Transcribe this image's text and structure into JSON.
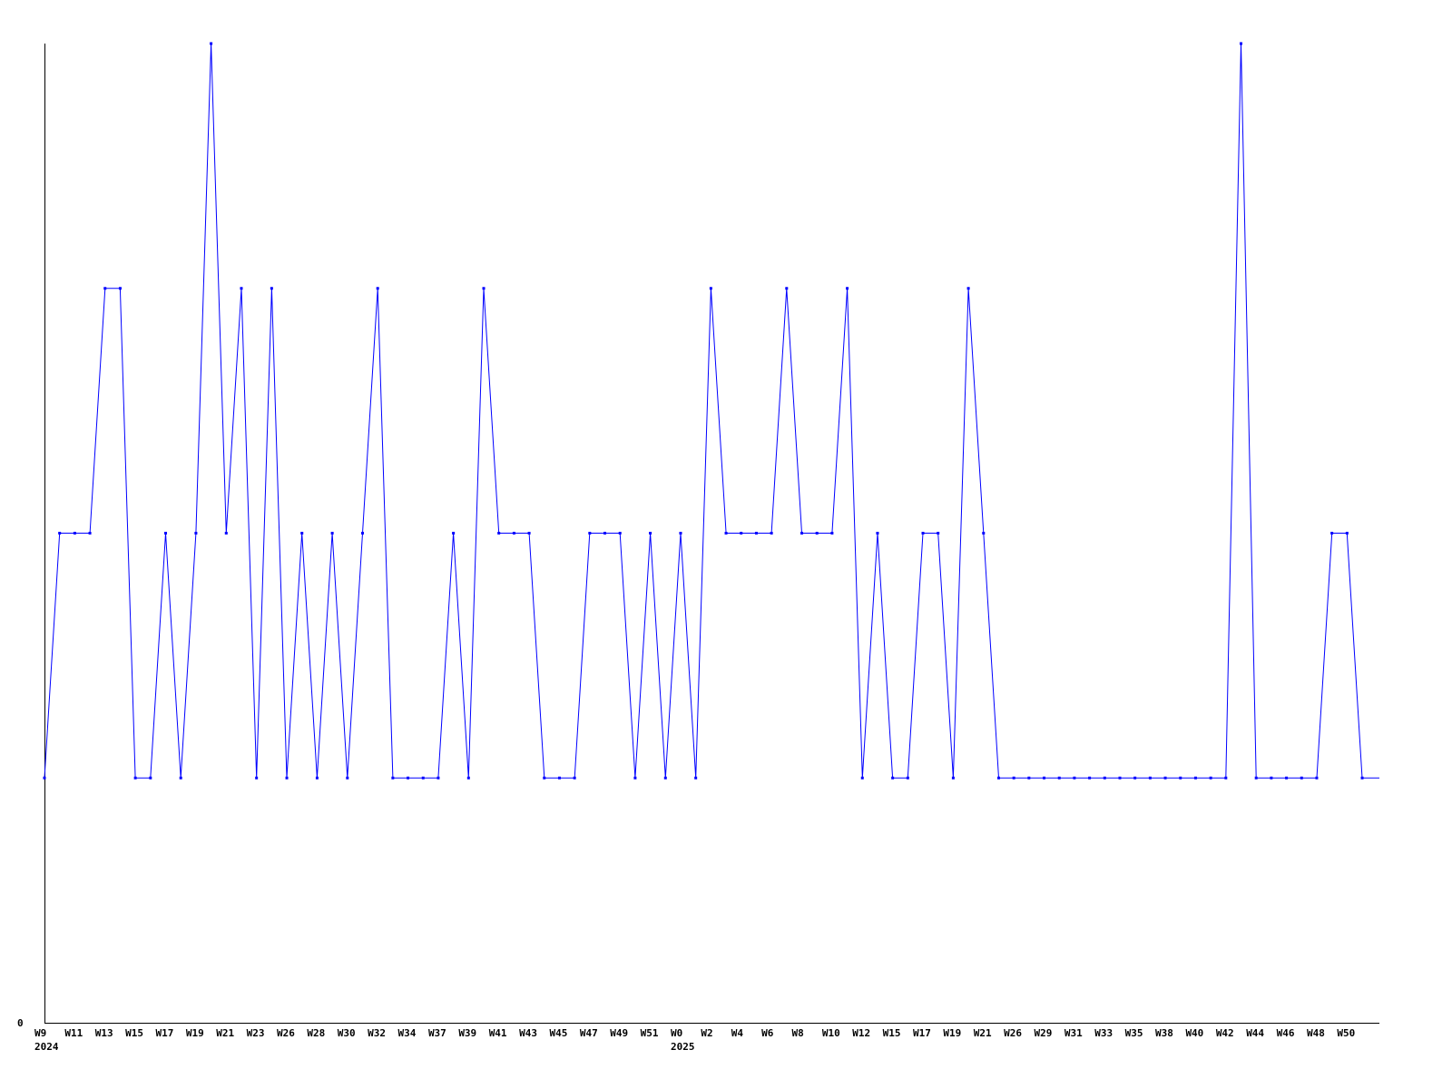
{
  "chart_data": {
    "type": "line",
    "title": "",
    "xlabel": "",
    "ylabel": "",
    "ylim": [
      0,
      4
    ],
    "y_tick_labels": [
      "0"
    ],
    "grid": false,
    "line_color": "#0000ff",
    "axis_color": "#000000",
    "values": [
      1,
      2,
      2,
      2,
      3,
      3,
      1,
      1,
      2,
      1,
      2,
      4,
      2,
      3,
      1,
      3,
      1,
      2,
      1,
      2,
      1,
      2,
      3,
      1,
      1,
      1,
      1,
      2,
      1,
      3,
      2,
      2,
      2,
      1,
      1,
      1,
      2,
      2,
      2,
      1,
      2,
      1,
      2,
      1,
      3,
      2,
      2,
      2,
      2,
      3,
      2,
      2,
      2,
      3,
      1,
      2,
      1,
      1,
      2,
      2,
      1,
      3,
      2,
      1,
      1,
      1,
      1,
      1,
      1,
      1,
      1,
      1,
      1,
      1,
      1,
      1,
      1,
      1,
      1,
      4,
      1,
      1,
      1,
      1,
      1,
      2,
      2,
      1
    ],
    "trailing_value": 1,
    "x_tick_labels": [
      "W9",
      "W11",
      "W13",
      "W15",
      "W17",
      "W19",
      "W21",
      "W23",
      "W26",
      "W28",
      "W30",
      "W32",
      "W34",
      "W37",
      "W39",
      "W41",
      "W43",
      "W45",
      "W47",
      "W49",
      "W51",
      "W0",
      "W2",
      "W4",
      "W6",
      "W8",
      "W10",
      "W12",
      "W15",
      "W17",
      "W19",
      "W21",
      "W26",
      "W29",
      "W31",
      "W33",
      "W35",
      "W38",
      "W40",
      "W42",
      "W44",
      "W46",
      "W48",
      "W50"
    ],
    "year_labels": [
      {
        "label": "2024",
        "tick_index": 0
      },
      {
        "label": "2025",
        "tick_index": 21
      }
    ]
  }
}
